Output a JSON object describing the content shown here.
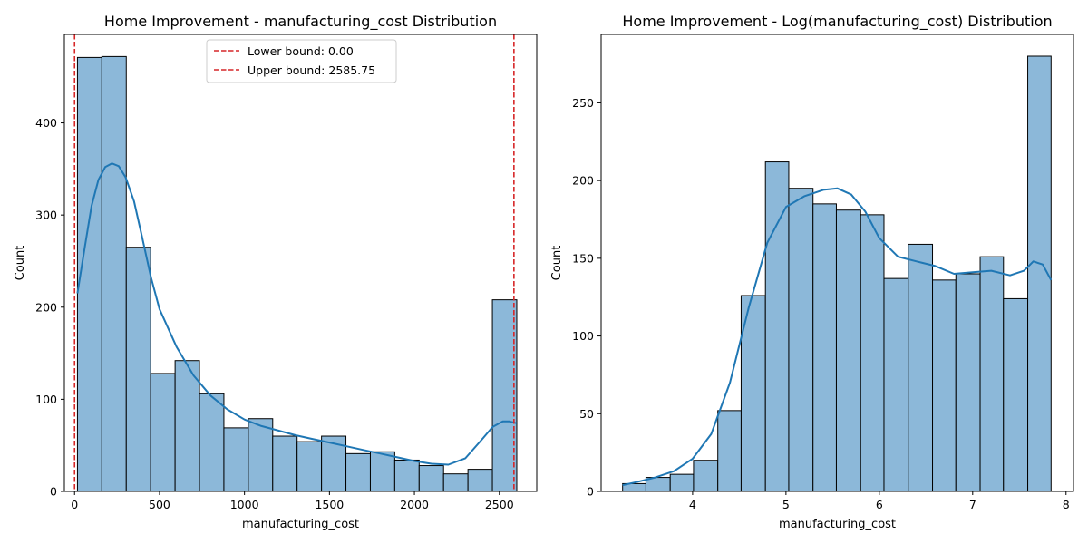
{
  "chart_data": [
    {
      "type": "bar",
      "subtype": "histogram",
      "title": "Home Improvement - manufacturing_cost Distribution",
      "xlabel": "manufacturing_cost",
      "ylabel": "Count",
      "xlim": [
        -60,
        2720
      ],
      "ylim": [
        0,
        496
      ],
      "xticks": [
        0,
        500,
        1000,
        1500,
        2000,
        2500
      ],
      "yticks": [
        0,
        100,
        200,
        300,
        400
      ],
      "bin_edges": [
        17,
        160.6,
        304.3,
        447.9,
        591.6,
        735.2,
        878.8,
        1022.5,
        1166.1,
        1309.7,
        1453.4,
        1597,
        1740.7,
        1884.3,
        2027.9,
        2171.6,
        2315.2,
        2458.9,
        2602.5
      ],
      "counts": [
        471,
        472,
        265,
        128,
        142,
        106,
        69,
        79,
        60,
        54,
        60,
        41,
        43,
        34,
        28,
        19,
        24,
        208
      ],
      "kde": {
        "x": [
          17,
          60,
          100,
          140,
          180,
          220,
          260,
          300,
          350,
          400,
          450,
          500,
          600,
          700,
          800,
          900,
          1000,
          1100,
          1200,
          1300,
          1400,
          1500,
          1600,
          1700,
          1800,
          1900,
          2000,
          2100,
          2200,
          2300,
          2400,
          2460,
          2520,
          2560,
          2602
        ],
        "y": [
          215,
          265,
          310,
          338,
          352,
          356,
          353,
          341,
          315,
          274,
          232,
          198,
          157,
          126,
          104,
          89,
          78,
          71,
          66,
          61,
          57,
          53,
          49,
          45,
          41,
          37,
          33,
          30,
          29,
          36,
          57,
          70,
          76,
          76,
          74
        ]
      },
      "reference_lines": [
        {
          "label": "Lower bound: 0.00",
          "x": 0,
          "color": "#d62728",
          "style": "dashed"
        },
        {
          "label": "Upper bound: 2585.75",
          "x": 2585.75,
          "color": "#d62728",
          "style": "dashed"
        }
      ],
      "legend_position": "top-center",
      "bar_color": "#8cb8d9",
      "kde_color": "#1f77b4",
      "grid": false
    },
    {
      "type": "bar",
      "subtype": "histogram",
      "title": "Home Improvement - Log(manufacturing_cost) Distribution",
      "xlabel": "manufacturing_cost",
      "ylabel": "Count",
      "xlim": [
        3.02,
        8.08
      ],
      "ylim": [
        0,
        294
      ],
      "xticks": [
        4,
        5,
        6,
        7,
        8
      ],
      "yticks": [
        0,
        50,
        100,
        150,
        200,
        250
      ],
      "bin_edges": [
        3.25,
        3.5,
        3.76,
        4.01,
        4.27,
        4.52,
        4.78,
        5.03,
        5.29,
        5.54,
        5.8,
        6.05,
        6.31,
        6.57,
        6.82,
        7.08,
        7.33,
        7.59,
        7.84
      ],
      "counts": [
        5,
        9,
        11,
        20,
        52,
        126,
        212,
        195,
        185,
        181,
        178,
        137,
        159,
        136,
        140,
        151,
        124,
        280
      ],
      "kde": {
        "x": [
          3.25,
          3.4,
          3.6,
          3.8,
          4.0,
          4.2,
          4.4,
          4.6,
          4.8,
          5.0,
          5.2,
          5.4,
          5.55,
          5.7,
          5.85,
          6.0,
          6.2,
          6.4,
          6.6,
          6.8,
          7.0,
          7.2,
          7.4,
          7.55,
          7.65,
          7.75,
          7.84
        ],
        "y": [
          4,
          6,
          9,
          13,
          21,
          37,
          70,
          118,
          160,
          183,
          190,
          194,
          195,
          191,
          180,
          163,
          151,
          148,
          145,
          140,
          141,
          142,
          139,
          142,
          148,
          146,
          136
        ]
      },
      "bar_color": "#8cb8d9",
      "kde_color": "#1f77b4",
      "grid": false
    }
  ]
}
